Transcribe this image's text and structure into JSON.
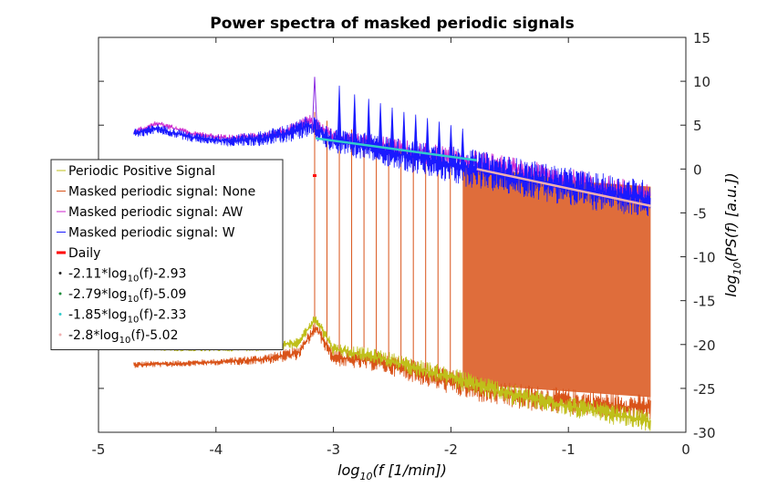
{
  "chart_data": {
    "type": "line",
    "title": "Power spectra of masked periodic signals",
    "xlabel": "log10(f [1/min])",
    "ylabel": "log10(PS(f) [a.u.])",
    "xlim": [
      -5,
      0
    ],
    "ylim": [
      -30,
      15
    ],
    "xticks": [
      -5,
      -4,
      -3,
      -2,
      -1,
      0
    ],
    "yticks": [
      15,
      10,
      5,
      0,
      -5,
      -10,
      -15,
      -20,
      -25,
      -30
    ],
    "y_axis_side": "right",
    "grid": false,
    "legend_position": "left",
    "legend": [
      {
        "label": "Periodic Positive Signal",
        "color": "#bfbf1a",
        "marker": "line"
      },
      {
        "label": "Masked periodic signal: None",
        "color": "#d95319",
        "marker": "line"
      },
      {
        "label": "Masked periodic signal: AW",
        "color": "#cc22cc",
        "marker": "line"
      },
      {
        "label": "Masked periodic signal: W",
        "color": "#1a1aff",
        "marker": "line"
      },
      {
        "label": "Daily",
        "color": "#ff0000",
        "marker": "thickline"
      },
      {
        "label_parts": [
          "-2.11*log",
          "10",
          "(f)-2.93"
        ],
        "color": "#222222",
        "marker": "dot"
      },
      {
        "label_parts": [
          "-2.79*log",
          "10",
          "(f)-5.09"
        ],
        "color": "#1a8c3a",
        "marker": "dot"
      },
      {
        "label_parts": [
          "-1.85*log",
          "10",
          "(f)-2.33"
        ],
        "color": "#33cccc",
        "marker": "dot"
      },
      {
        "label_parts": [
          "-2.8*log",
          "10",
          "(f)-5.02"
        ],
        "color": "#f0b0b0",
        "marker": "dot"
      }
    ],
    "series": [
      {
        "name": "Periodic Positive Signal",
        "color": "#bfbf1a",
        "x": [
          -4.7,
          -4.4,
          -4.0,
          -3.6,
          -3.3,
          -3.15,
          -3.0,
          -2.6,
          -2.2,
          -1.8,
          -1.4,
          -1.0,
          -0.6,
          -0.3
        ],
        "y": [
          -20.2,
          -20.5,
          -20.5,
          -20.3,
          -19.8,
          -17.0,
          -20.5,
          -21.5,
          -23.0,
          -24.5,
          -26.0,
          -27.0,
          -28.0,
          -28.8
        ],
        "band": 1.2
      },
      {
        "name": "Masked periodic signal: None",
        "color": "#d95319",
        "x": [
          -4.7,
          -4.4,
          -4.0,
          -3.6,
          -3.3,
          -3.15,
          -3.0,
          -2.6,
          -2.2,
          -1.8,
          -1.4,
          -1.0,
          -0.6,
          -0.3
        ],
        "y": [
          -22.3,
          -22.2,
          -22.0,
          -21.7,
          -21.0,
          -18.0,
          -21.5,
          -22.0,
          -23.5,
          -25.0,
          -26.0,
          -26.5,
          -27.0,
          -27.2
        ],
        "band": 1.5,
        "spike_top": [
          6.5,
          5.5,
          5.0,
          4.5,
          4.0,
          3.5,
          3.0,
          2.5,
          2.0,
          1.5,
          1.0,
          0.5
        ],
        "fill_from_x": -1.9,
        "fill_top": [
          0.5,
          -0.5,
          -1.5,
          -2.0
        ],
        "fill_bottom": -26.0
      },
      {
        "name": "Masked periodic signal: AW",
        "color": "#cc22cc",
        "x": [
          -4.7,
          -4.5,
          -4.2,
          -3.9,
          -3.6,
          -3.35,
          -3.2,
          -3.0,
          -2.7,
          -2.4,
          -2.0,
          -1.6,
          -1.2,
          -0.8,
          -0.3
        ],
        "y": [
          4.2,
          5.2,
          4.0,
          3.5,
          3.8,
          4.5,
          5.5,
          3.6,
          3.0,
          2.2,
          1.2,
          0.3,
          -0.8,
          -1.8,
          -3.0
        ],
        "band": 1.4
      },
      {
        "name": "Masked periodic signal: W",
        "color": "#1a1aff",
        "x": [
          -4.7,
          -4.5,
          -4.2,
          -3.9,
          -3.6,
          -3.35,
          -3.2,
          -3.0,
          -2.7,
          -2.4,
          -2.0,
          -1.6,
          -1.2,
          -0.8,
          -0.3
        ],
        "y": [
          4.0,
          4.6,
          3.6,
          3.2,
          3.5,
          4.2,
          5.0,
          3.2,
          2.5,
          1.6,
          0.5,
          -0.5,
          -1.5,
          -2.5,
          -3.5
        ],
        "band": 2.2,
        "peaks": [
          -2.95,
          -2.82,
          -2.7,
          -2.6,
          -2.5,
          -2.4,
          -2.3,
          -2.2,
          -2.1,
          -2.0,
          -1.9
        ],
        "peak_tops": [
          9.5,
          8.5,
          8.0,
          7.5,
          7.0,
          6.5,
          6.2,
          5.8,
          5.4,
          5.0,
          4.6
        ]
      },
      {
        "name": "Daily",
        "color": "#ff0000",
        "x": [
          -3.16,
          -3.16
        ],
        "y": [
          -0.6,
          -0.9
        ]
      },
      {
        "name": "-1.85*log10(f)-2.33",
        "color": "#33cccc",
        "x": [
          -3.15,
          -1.78
        ],
        "y": [
          3.5,
          1.0
        ]
      },
      {
        "name": "-2.8*log10(f)-5.02",
        "color": "#f0b0b0",
        "x": [
          -1.78,
          -0.3
        ],
        "y": [
          0.0,
          -4.2
        ]
      }
    ]
  }
}
